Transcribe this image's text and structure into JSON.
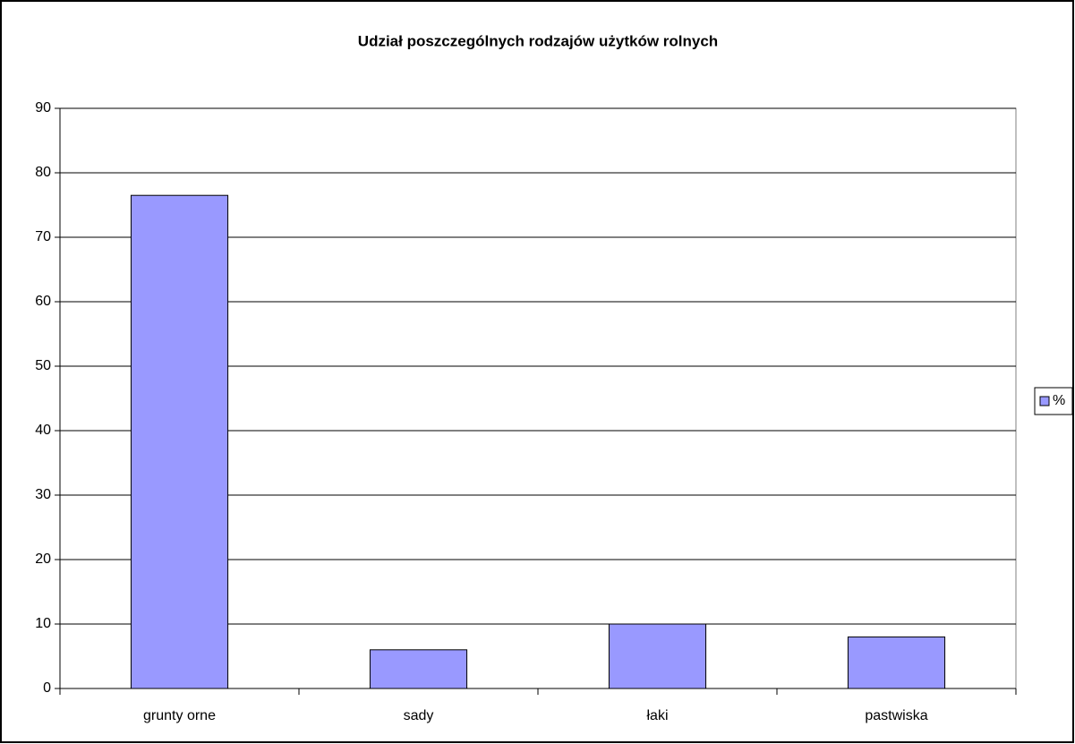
{
  "chart_data": {
    "type": "bar",
    "title": "Udział poszczególnych rodzajów użytków rolnych",
    "categories": [
      "grunty orne",
      "sady",
      "łaki",
      "pastwiska"
    ],
    "series": [
      {
        "name": "%",
        "color": "#9999ff",
        "values": [
          76.5,
          6,
          10,
          8
        ]
      }
    ],
    "ylim": [
      0,
      90
    ],
    "yticks": [
      0,
      10,
      20,
      30,
      40,
      50,
      60,
      70,
      80,
      90
    ],
    "grid": true,
    "legend": "right"
  }
}
